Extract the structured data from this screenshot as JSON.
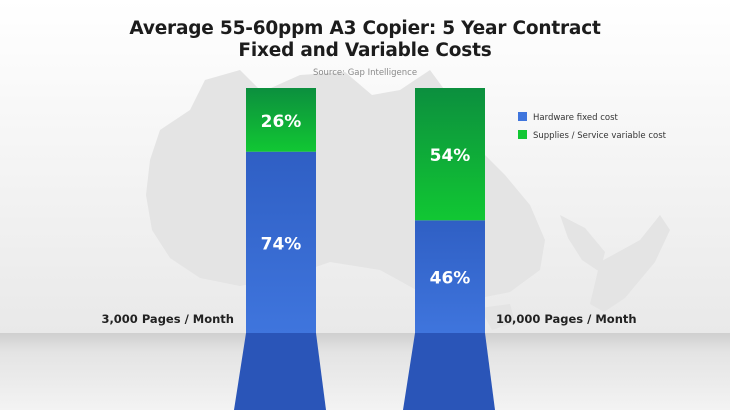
{
  "colors": {
    "hardware_top": "#2f5fc4",
    "hardware_bottom": "#3f75dd",
    "supplies_top": "#0c8f3e",
    "supplies_bottom": "#11c733",
    "background": "#f2f2f2",
    "floor": "#d8d8d8",
    "map": "#e6e6e6"
  },
  "chart_data": {
    "type": "bar",
    "stacked": true,
    "title": "Average 55-60ppm A3 Copier: 5 Year Contract",
    "subtitle": "Fixed and Variable Costs",
    "source": "Source: Gap Intelligence",
    "categories": [
      "3,000 Pages / Month",
      "10,000 Pages / Month"
    ],
    "series": [
      {
        "name": "Hardware fixed cost",
        "values": [
          74,
          46
        ],
        "labels": [
          "74%",
          "46%"
        ]
      },
      {
        "name": "Supplies / Service variable cost",
        "values": [
          26,
          54
        ],
        "labels": [
          "26%",
          "54%"
        ]
      }
    ],
    "unit": "%",
    "ylim": [
      0,
      100
    ],
    "legend": "top-right",
    "grid": false
  }
}
